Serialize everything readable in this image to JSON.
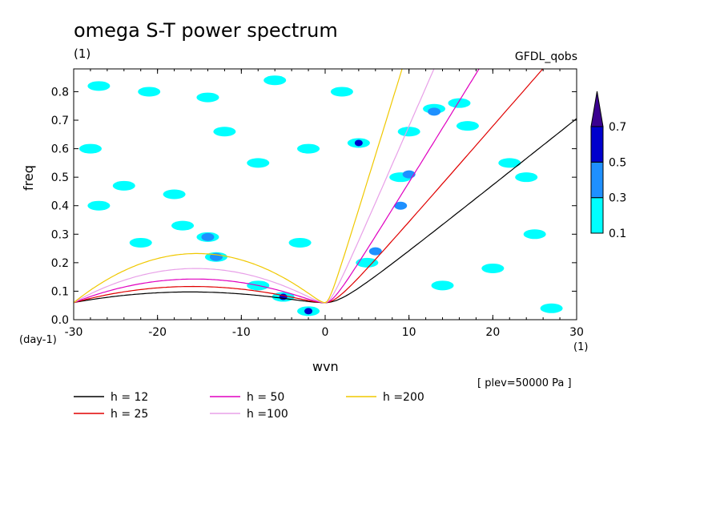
{
  "chart_data": {
    "type": "heatmap",
    "title": "omega S-T power spectrum",
    "subtitle_left": "(1)",
    "source_label": "GFDL_qobs",
    "xlabel": "wvn",
    "ylabel": "freq",
    "x_unit": "(1)",
    "y_unit": "(day-1)",
    "annotation": "[ plev=50000 Pa ]",
    "xlim": [
      -30,
      30
    ],
    "ylim": [
      0,
      0.88
    ],
    "x_ticks": [
      -30,
      -20,
      -10,
      0,
      10,
      20,
      30
    ],
    "x_tick_labels": [
      "-30",
      "-20",
      "-10",
      "0",
      "10",
      "20",
      "30"
    ],
    "y_ticks": [
      0,
      0.1,
      0.2,
      0.3,
      0.4,
      0.5,
      0.6,
      0.7,
      0.8
    ],
    "y_tick_labels": [
      "0.0",
      "0.1",
      "0.2",
      "0.3",
      "0.4",
      "0.5",
      "0.6",
      "0.7",
      "0.8"
    ],
    "colorbar": {
      "levels": [
        "0.1",
        "0.3",
        "0.5",
        "0.7"
      ],
      "colors": [
        "#00ffff",
        "#1e90ff",
        "#0000cd",
        "#3a0090"
      ]
    },
    "dispersion_curves": [
      {
        "label": "h = 12",
        "h": 12,
        "color": "#000000"
      },
      {
        "label": "h = 25",
        "h": 25,
        "color": "#e00000"
      },
      {
        "label": "h = 50",
        "h": 50,
        "color": "#e000c0"
      },
      {
        "label": "h =100",
        "h": 100,
        "color": "#e8a0e8"
      },
      {
        "label": "h =200",
        "h": 200,
        "color": "#f0c800"
      }
    ],
    "contour_patches": [
      {
        "x": -27,
        "y": 0.82,
        "level": 1
      },
      {
        "x": -21,
        "y": 0.8,
        "level": 1
      },
      {
        "x": -14,
        "y": 0.78,
        "level": 1
      },
      {
        "x": -6,
        "y": 0.84,
        "level": 1
      },
      {
        "x": 2,
        "y": 0.8,
        "level": 1
      },
      {
        "x": -28,
        "y": 0.6,
        "level": 1
      },
      {
        "x": -24,
        "y": 0.47,
        "level": 1
      },
      {
        "x": -18,
        "y": 0.44,
        "level": 1
      },
      {
        "x": -27,
        "y": 0.4,
        "level": 1
      },
      {
        "x": -8,
        "y": 0.55,
        "level": 1
      },
      {
        "x": -2,
        "y": 0.6,
        "level": 1
      },
      {
        "x": -12,
        "y": 0.66,
        "level": 1
      },
      {
        "x": -22,
        "y": 0.27,
        "level": 1
      },
      {
        "x": -17,
        "y": 0.33,
        "level": 1
      },
      {
        "x": -14,
        "y": 0.29,
        "level": 1
      },
      {
        "x": -14,
        "y": 0.29,
        "level": 2
      },
      {
        "x": -13,
        "y": 0.22,
        "level": 1
      },
      {
        "x": -13,
        "y": 0.22,
        "level": 2
      },
      {
        "x": -8,
        "y": 0.12,
        "level": 1
      },
      {
        "x": -5,
        "y": 0.08,
        "level": 1
      },
      {
        "x": -5,
        "y": 0.08,
        "level": 3
      },
      {
        "x": -2,
        "y": 0.03,
        "level": 1
      },
      {
        "x": -2,
        "y": 0.03,
        "level": 3
      },
      {
        "x": 5,
        "y": 0.2,
        "level": 1
      },
      {
        "x": 6,
        "y": 0.24,
        "level": 2
      },
      {
        "x": 4,
        "y": 0.62,
        "level": 1
      },
      {
        "x": 4,
        "y": 0.62,
        "level": 3
      },
      {
        "x": 9,
        "y": 0.5,
        "level": 1
      },
      {
        "x": 10,
        "y": 0.51,
        "level": 2
      },
      {
        "x": 9,
        "y": 0.4,
        "level": 2
      },
      {
        "x": 13,
        "y": 0.74,
        "level": 1
      },
      {
        "x": 13,
        "y": 0.73,
        "level": 2
      },
      {
        "x": 16,
        "y": 0.76,
        "level": 1
      },
      {
        "x": 22,
        "y": 0.55,
        "level": 1
      },
      {
        "x": 24,
        "y": 0.5,
        "level": 1
      },
      {
        "x": 25,
        "y": 0.3,
        "level": 1
      },
      {
        "x": 20,
        "y": 0.18,
        "level": 1
      },
      {
        "x": 27,
        "y": 0.04,
        "level": 1
      },
      {
        "x": 14,
        "y": 0.12,
        "level": 1
      },
      {
        "x": 10,
        "y": 0.66,
        "level": 1
      },
      {
        "x": 17,
        "y": 0.68,
        "level": 1
      },
      {
        "x": -3,
        "y": 0.27,
        "level": 1
      }
    ]
  }
}
